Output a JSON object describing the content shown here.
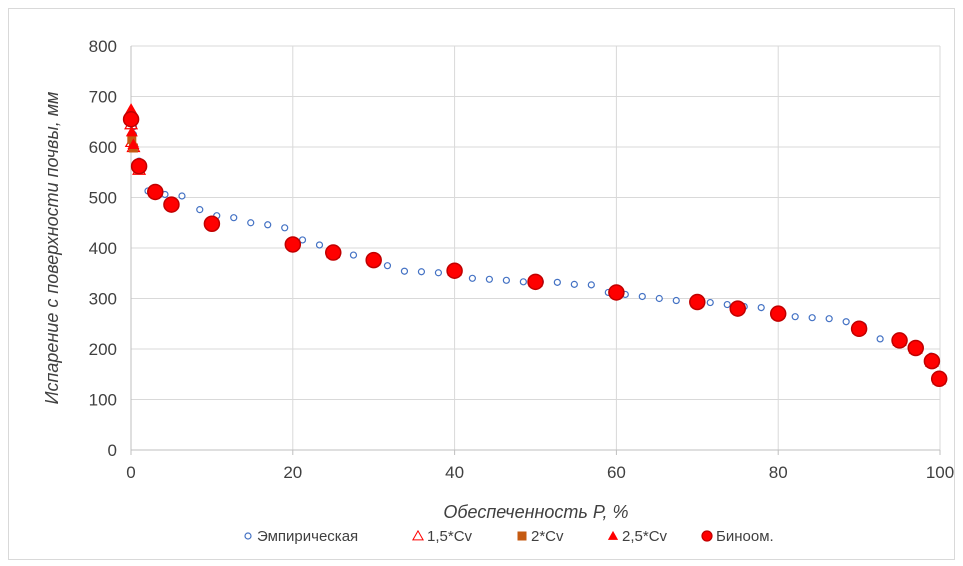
{
  "chart_data": {
    "type": "scatter",
    "xlabel": "Обеспеченность P, %",
    "ylabel": "Испарение с поверхности почвы, мм",
    "xlim": [
      0,
      100
    ],
    "ylim": [
      0,
      800
    ],
    "xticks": [
      0,
      20,
      40,
      60,
      80,
      100
    ],
    "yticks": [
      0,
      100,
      200,
      300,
      400,
      500,
      600,
      700,
      800
    ],
    "grid": "both",
    "legend_position": "bottom",
    "series": [
      {
        "name": "Эмпирическая",
        "marker": "open-circle",
        "color": "#4472C4",
        "points": [
          [
            0.3,
            640
          ],
          [
            0.3,
            625
          ],
          [
            1.0,
            572
          ],
          [
            2.1,
            513
          ],
          [
            4.2,
            506
          ],
          [
            6.3,
            503
          ],
          [
            8.5,
            476
          ],
          [
            10.6,
            464
          ],
          [
            12.7,
            460
          ],
          [
            14.8,
            450
          ],
          [
            16.9,
            446
          ],
          [
            19.0,
            440
          ],
          [
            21.2,
            416
          ],
          [
            23.3,
            406
          ],
          [
            25.4,
            396
          ],
          [
            27.5,
            386
          ],
          [
            29.6,
            378
          ],
          [
            31.7,
            365
          ],
          [
            33.8,
            354
          ],
          [
            35.9,
            353
          ],
          [
            38.0,
            351
          ],
          [
            40.1,
            350
          ],
          [
            42.2,
            340
          ],
          [
            44.3,
            338
          ],
          [
            46.4,
            336
          ],
          [
            48.5,
            333
          ],
          [
            50.6,
            333
          ],
          [
            52.7,
            332
          ],
          [
            54.8,
            328
          ],
          [
            56.9,
            327
          ],
          [
            59.0,
            312
          ],
          [
            61.1,
            308
          ],
          [
            63.2,
            304
          ],
          [
            65.3,
            300
          ],
          [
            67.4,
            296
          ],
          [
            69.5,
            294
          ],
          [
            71.6,
            292
          ],
          [
            73.7,
            288
          ],
          [
            75.8,
            284
          ],
          [
            77.9,
            282
          ],
          [
            80.0,
            268
          ],
          [
            82.1,
            264
          ],
          [
            84.2,
            262
          ],
          [
            86.3,
            260
          ],
          [
            88.4,
            254
          ],
          [
            90.5,
            246
          ],
          [
            92.6,
            220
          ],
          [
            94.7,
            218
          ],
          [
            96.8,
            205
          ],
          [
            98.9,
            186
          ],
          [
            99.3,
            180
          ]
        ]
      },
      {
        "name": "1,5*Cv",
        "marker": "open-triangle",
        "color": "#FF0000",
        "points": [
          [
            0.01,
            645
          ],
          [
            0.1,
            610
          ],
          [
            0.3,
            600
          ],
          [
            1,
            555
          ],
          [
            3,
            512
          ],
          [
            5,
            487
          ],
          [
            10,
            450
          ],
          [
            20,
            408
          ],
          [
            25,
            390
          ],
          [
            30,
            376
          ],
          [
            40,
            355
          ],
          [
            50,
            333
          ],
          [
            60,
            313
          ],
          [
            70,
            293
          ],
          [
            75,
            281
          ],
          [
            80,
            270
          ],
          [
            90,
            240
          ],
          [
            95,
            216
          ],
          [
            97,
            201
          ],
          [
            99,
            175
          ],
          [
            99.9,
            140
          ]
        ]
      },
      {
        "name": "2*Cv",
        "marker": "filled-square",
        "color": "#C55A11",
        "points": [
          [
            0.01,
            655
          ],
          [
            0.1,
            615
          ],
          [
            0.3,
            598
          ],
          [
            1,
            556
          ],
          [
            3,
            511
          ],
          [
            5,
            486
          ],
          [
            10,
            449
          ],
          [
            20,
            406
          ],
          [
            25,
            389
          ],
          [
            30,
            376
          ],
          [
            40,
            354
          ],
          [
            50,
            332
          ],
          [
            60,
            312
          ],
          [
            70,
            292
          ],
          [
            75,
            280
          ],
          [
            80,
            269
          ],
          [
            90,
            238
          ],
          [
            95,
            215
          ],
          [
            97,
            200
          ],
          [
            99,
            172
          ],
          [
            99.9,
            138
          ]
        ]
      },
      {
        "name": "2,5*Cv",
        "marker": "filled-triangle",
        "color": "#FF0000",
        "points": [
          [
            0.01,
            675
          ],
          [
            0.1,
            630
          ],
          [
            0.3,
            605
          ],
          [
            1,
            558
          ],
          [
            3,
            512
          ],
          [
            5,
            487
          ],
          [
            10,
            450
          ],
          [
            20,
            407
          ],
          [
            25,
            390
          ],
          [
            30,
            376
          ],
          [
            40,
            354
          ],
          [
            50,
            333
          ],
          [
            60,
            312
          ],
          [
            70,
            292
          ],
          [
            75,
            280
          ],
          [
            80,
            270
          ],
          [
            90,
            239
          ],
          [
            95,
            216
          ],
          [
            97,
            201
          ],
          [
            99,
            174
          ],
          [
            99.9,
            140
          ]
        ]
      },
      {
        "name": "Биноом.",
        "marker": "filled-circle",
        "color": "#FF0000",
        "edge": "#C00000",
        "points": [
          [
            0.01,
            655
          ],
          [
            1,
            562
          ],
          [
            3,
            511
          ],
          [
            5,
            486
          ],
          [
            10,
            448
          ],
          [
            20,
            407
          ],
          [
            25,
            391
          ],
          [
            30,
            376
          ],
          [
            40,
            355
          ],
          [
            50,
            333
          ],
          [
            60,
            312
          ],
          [
            70,
            293
          ],
          [
            75,
            280
          ],
          [
            80,
            270
          ],
          [
            90,
            240
          ],
          [
            95,
            217
          ],
          [
            97,
            202
          ],
          [
            99,
            176
          ],
          [
            99.9,
            141
          ]
        ]
      }
    ]
  }
}
